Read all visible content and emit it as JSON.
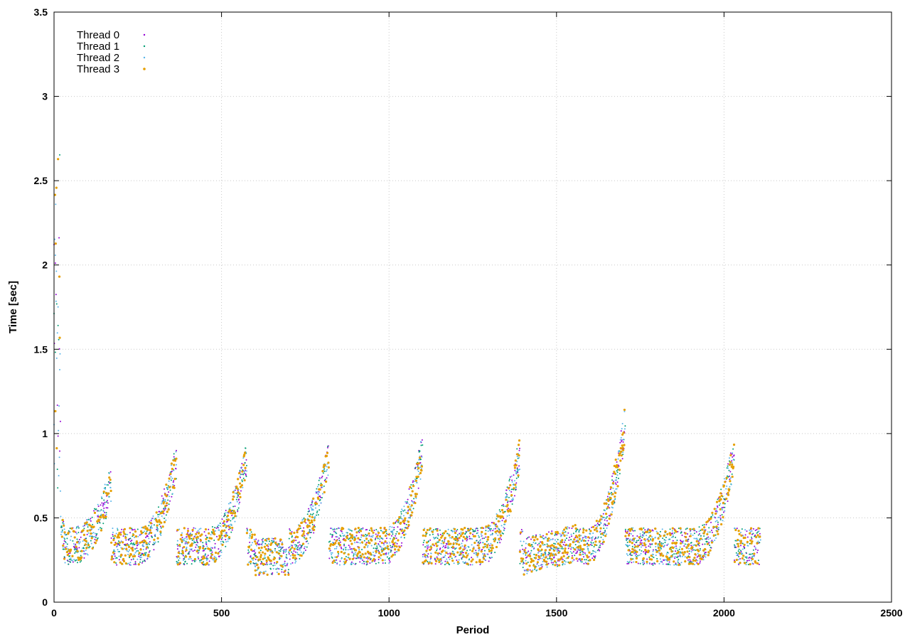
{
  "chart_data": {
    "type": "scatter",
    "title": "",
    "xlabel": "Period",
    "ylabel": "Time [sec]",
    "xlim": [
      0,
      2500
    ],
    "ylim": [
      0,
      3.5
    ],
    "xticks": [
      0,
      500,
      1000,
      1500,
      2000,
      2500
    ],
    "yticks": [
      0,
      0.5,
      1,
      1.5,
      2,
      2.5,
      3,
      3.5
    ],
    "ytick_labels": [
      "0",
      "0.5",
      "1",
      "1.5",
      "2",
      "2.5",
      "3",
      "3.5"
    ],
    "grid": true,
    "legend_position": "top-left",
    "series": [
      {
        "name": "Thread 0",
        "color": "#9400d3",
        "marker": "dot",
        "points": []
      },
      {
        "name": "Thread 1",
        "color": "#009e73",
        "marker": "dot",
        "points": []
      },
      {
        "name": "Thread 2",
        "color": "#56b4e9",
        "marker": "dot",
        "points": []
      },
      {
        "name": "Thread 3",
        "color": "#e69f00",
        "marker": "dot",
        "points": []
      }
    ],
    "peaks": [
      [
        10,
        2.9
      ],
      [
        170,
        0.82
      ],
      [
        365,
        0.96
      ],
      [
        575,
        0.97
      ],
      [
        820,
        0.98
      ],
      [
        1100,
        1.02
      ],
      [
        1390,
        1.0
      ],
      [
        1705,
        1.18
      ],
      [
        2030,
        1.0
      ]
    ]
  }
}
